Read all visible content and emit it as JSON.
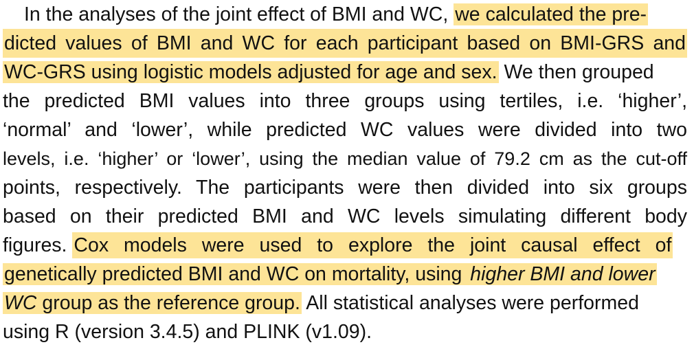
{
  "colors": {
    "highlight": "#fde497",
    "text": "#111111",
    "background": "#ffffff"
  },
  "paragraph": {
    "lines": [
      {
        "segments": [
          {
            "text": "In the analyses of the joint effect of BMI and WC, ",
            "highlight": false,
            "italic": false
          },
          {
            "text": "we calculated the pre-",
            "highlight": true,
            "italic": false
          }
        ]
      },
      {
        "segments": [
          {
            "text": "dicted values of BMI and WC for each participant based on BMI-GRS and",
            "highlight": true,
            "italic": false
          }
        ]
      },
      {
        "segments": [
          {
            "text": "WC-GRS using logistic models adjusted for age and sex.",
            "highlight": true,
            "italic": false
          },
          {
            "text": " We then grouped",
            "highlight": false,
            "italic": false
          }
        ]
      },
      {
        "segments": [
          {
            "text": "the predicted BMI values into three groups using tertiles, i.e. ‘higher’,",
            "highlight": false,
            "italic": false
          }
        ]
      },
      {
        "segments": [
          {
            "text": "‘normal’ and ‘lower’, while predicted WC values were divided into two",
            "highlight": false,
            "italic": false
          }
        ]
      },
      {
        "segments": [
          {
            "text": "levels, i.e. ‘higher’ or ‘lower’, using the median value of 79.2 cm as the cut-off",
            "highlight": false,
            "italic": false
          }
        ]
      },
      {
        "segments": [
          {
            "text": "points, respectively. The participants were then divided into six groups",
            "highlight": false,
            "italic": false
          }
        ]
      },
      {
        "segments": [
          {
            "text": "based on their predicted BMI and WC levels simulating different body",
            "highlight": false,
            "italic": false
          }
        ]
      },
      {
        "segments": [
          {
            "text": "figures. ",
            "highlight": false,
            "italic": false
          },
          {
            "text": "Cox models were used to explore the joint causal effect of",
            "highlight": true,
            "italic": false
          }
        ]
      },
      {
        "segments": [
          {
            "text": "genetically predicted BMI and WC on mortality, using ",
            "highlight": true,
            "italic": false
          },
          {
            "text": "higher BMI and lower",
            "highlight": true,
            "italic": true
          }
        ]
      },
      {
        "segments": [
          {
            "text": "WC",
            "highlight": true,
            "italic": true
          },
          {
            "text": " group as the reference group.",
            "highlight": true,
            "italic": false
          },
          {
            "text": " All statistical analyses were performed",
            "highlight": false,
            "italic": false
          }
        ]
      },
      {
        "segments": [
          {
            "text": "using R (version 3.4.5) and PLINK (v1.09).",
            "highlight": false,
            "italic": false
          }
        ]
      }
    ]
  }
}
